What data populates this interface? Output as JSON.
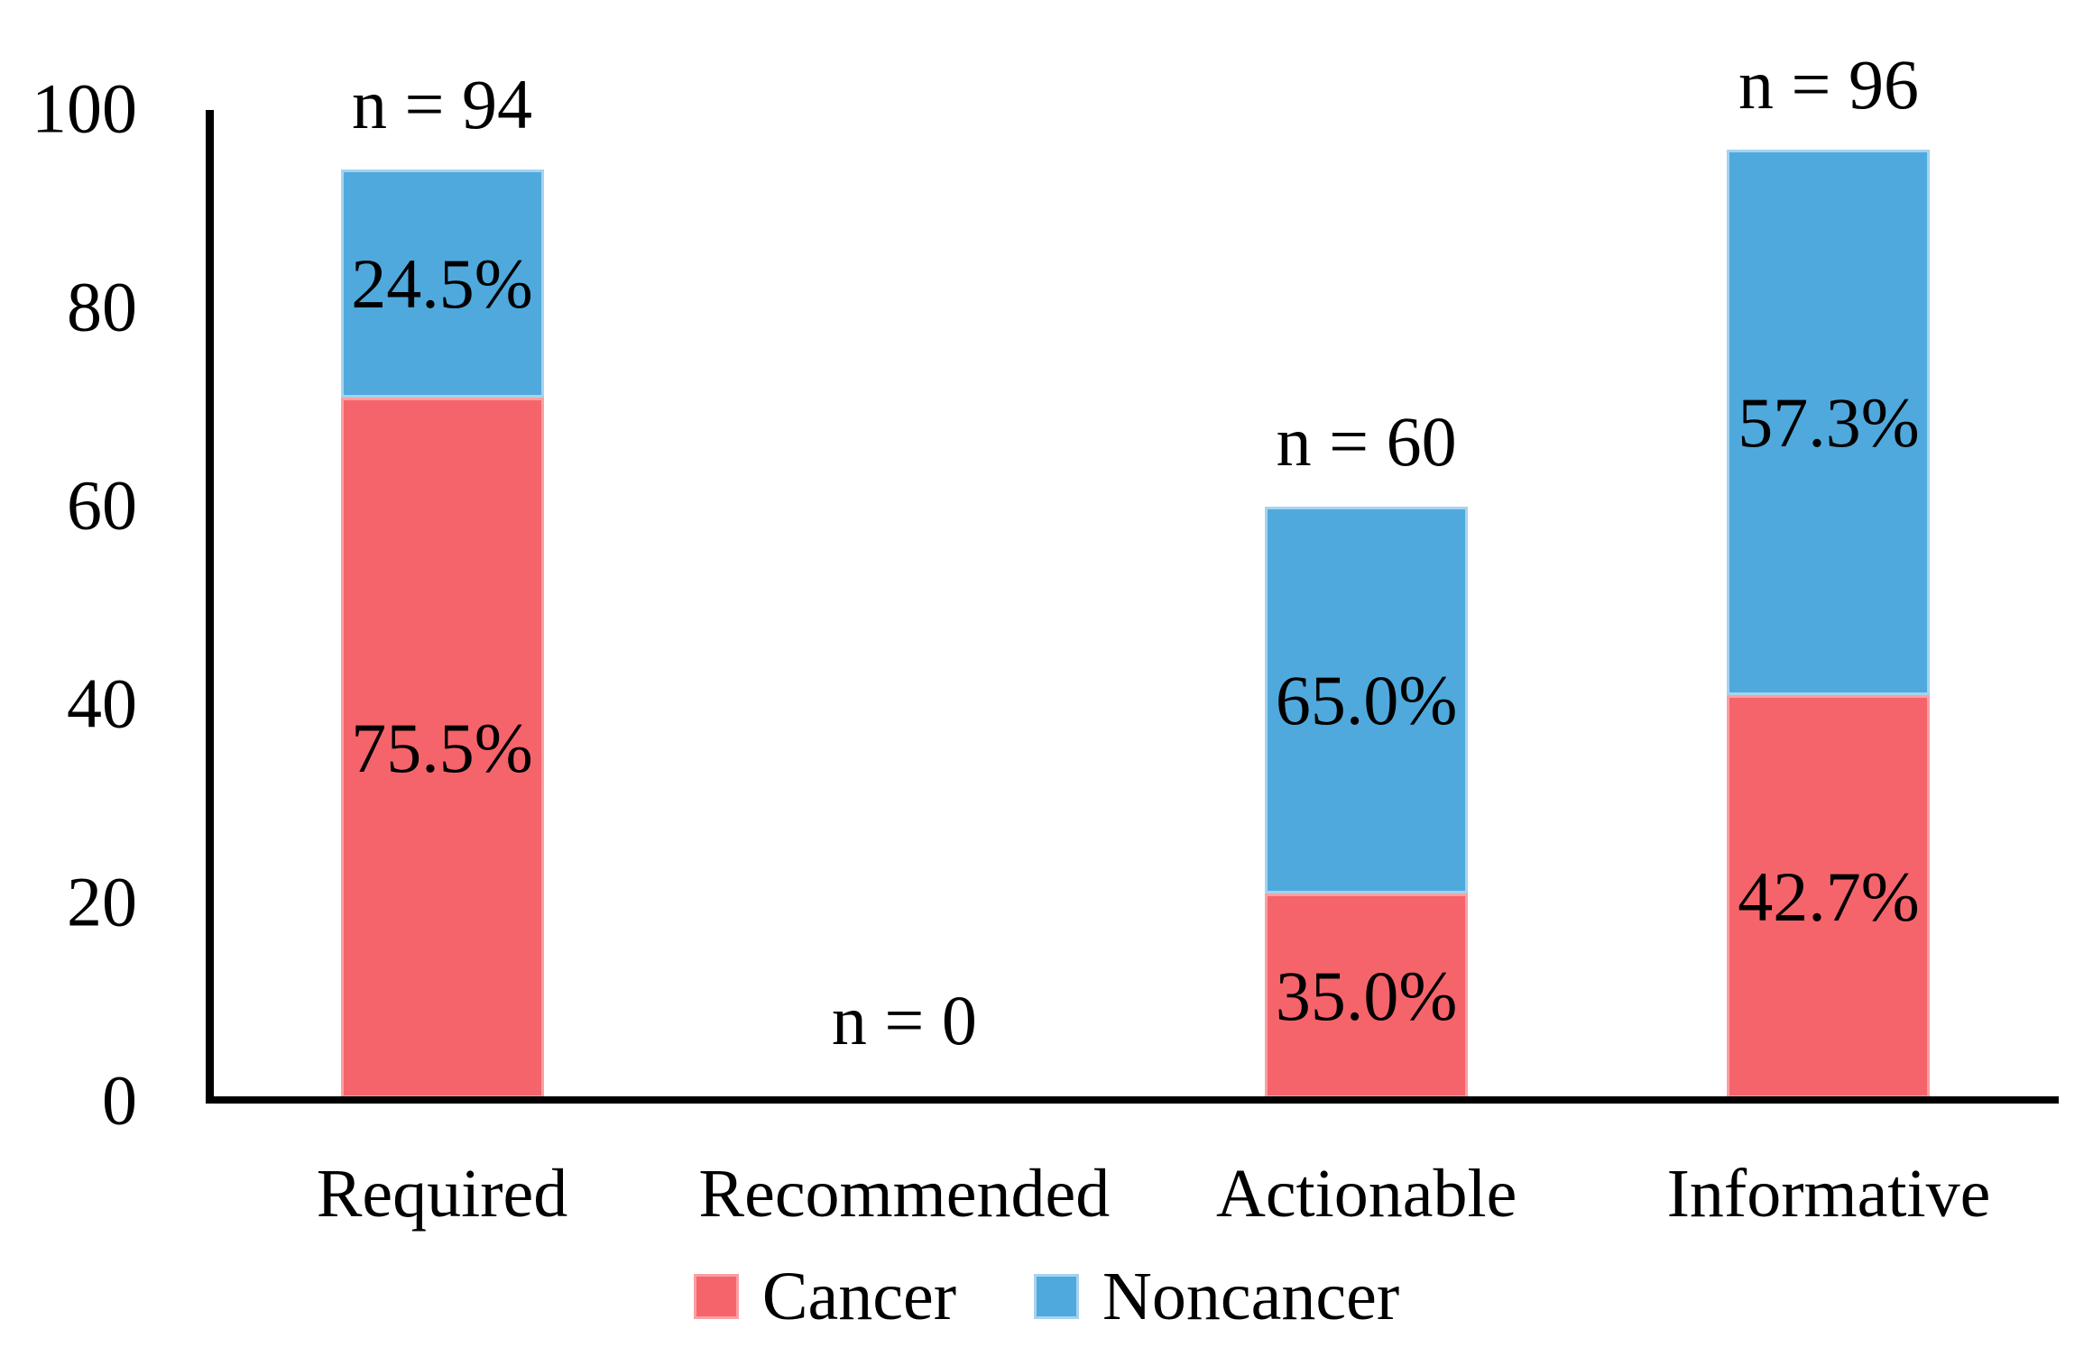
{
  "chart_data": {
    "type": "bar",
    "stacked": true,
    "title": "",
    "xlabel": "",
    "ylabel": "",
    "grid": false,
    "categories": [
      "Required",
      "Recommended",
      "Actionable",
      "Informative"
    ],
    "totals": [
      {
        "n": 94,
        "label": "n = 94"
      },
      {
        "n": 0,
        "label": "n = 0"
      },
      {
        "n": 60,
        "label": "n = 60"
      },
      {
        "n": 96,
        "label": "n = 96"
      }
    ],
    "series": [
      {
        "name": "Cancer",
        "color": "#F5646A",
        "border_color": "#FA9FA3",
        "pct": [
          75.5,
          null,
          35.0,
          42.7
        ],
        "pct_labels": [
          "75.5%",
          null,
          "35.0%",
          "42.7%"
        ]
      },
      {
        "name": "Noncancer",
        "color": "#4FA9DC",
        "border_color": "#A5D3EF",
        "pct": [
          24.5,
          null,
          65.0,
          57.3
        ],
        "pct_labels": [
          "24.5%",
          null,
          "65.0%",
          "57.3%"
        ]
      }
    ],
    "y_axis": {
      "min": 0,
      "max": 100,
      "ticks": [
        0,
        20,
        40,
        60,
        80,
        100
      ],
      "tick_labels": [
        "0",
        "20",
        "40",
        "60",
        "80",
        "100"
      ]
    },
    "legend": {
      "position": "bottom",
      "entries": [
        "Cancer",
        "Noncancer"
      ]
    },
    "axis_color": "#000000",
    "text_color": "#000000"
  }
}
